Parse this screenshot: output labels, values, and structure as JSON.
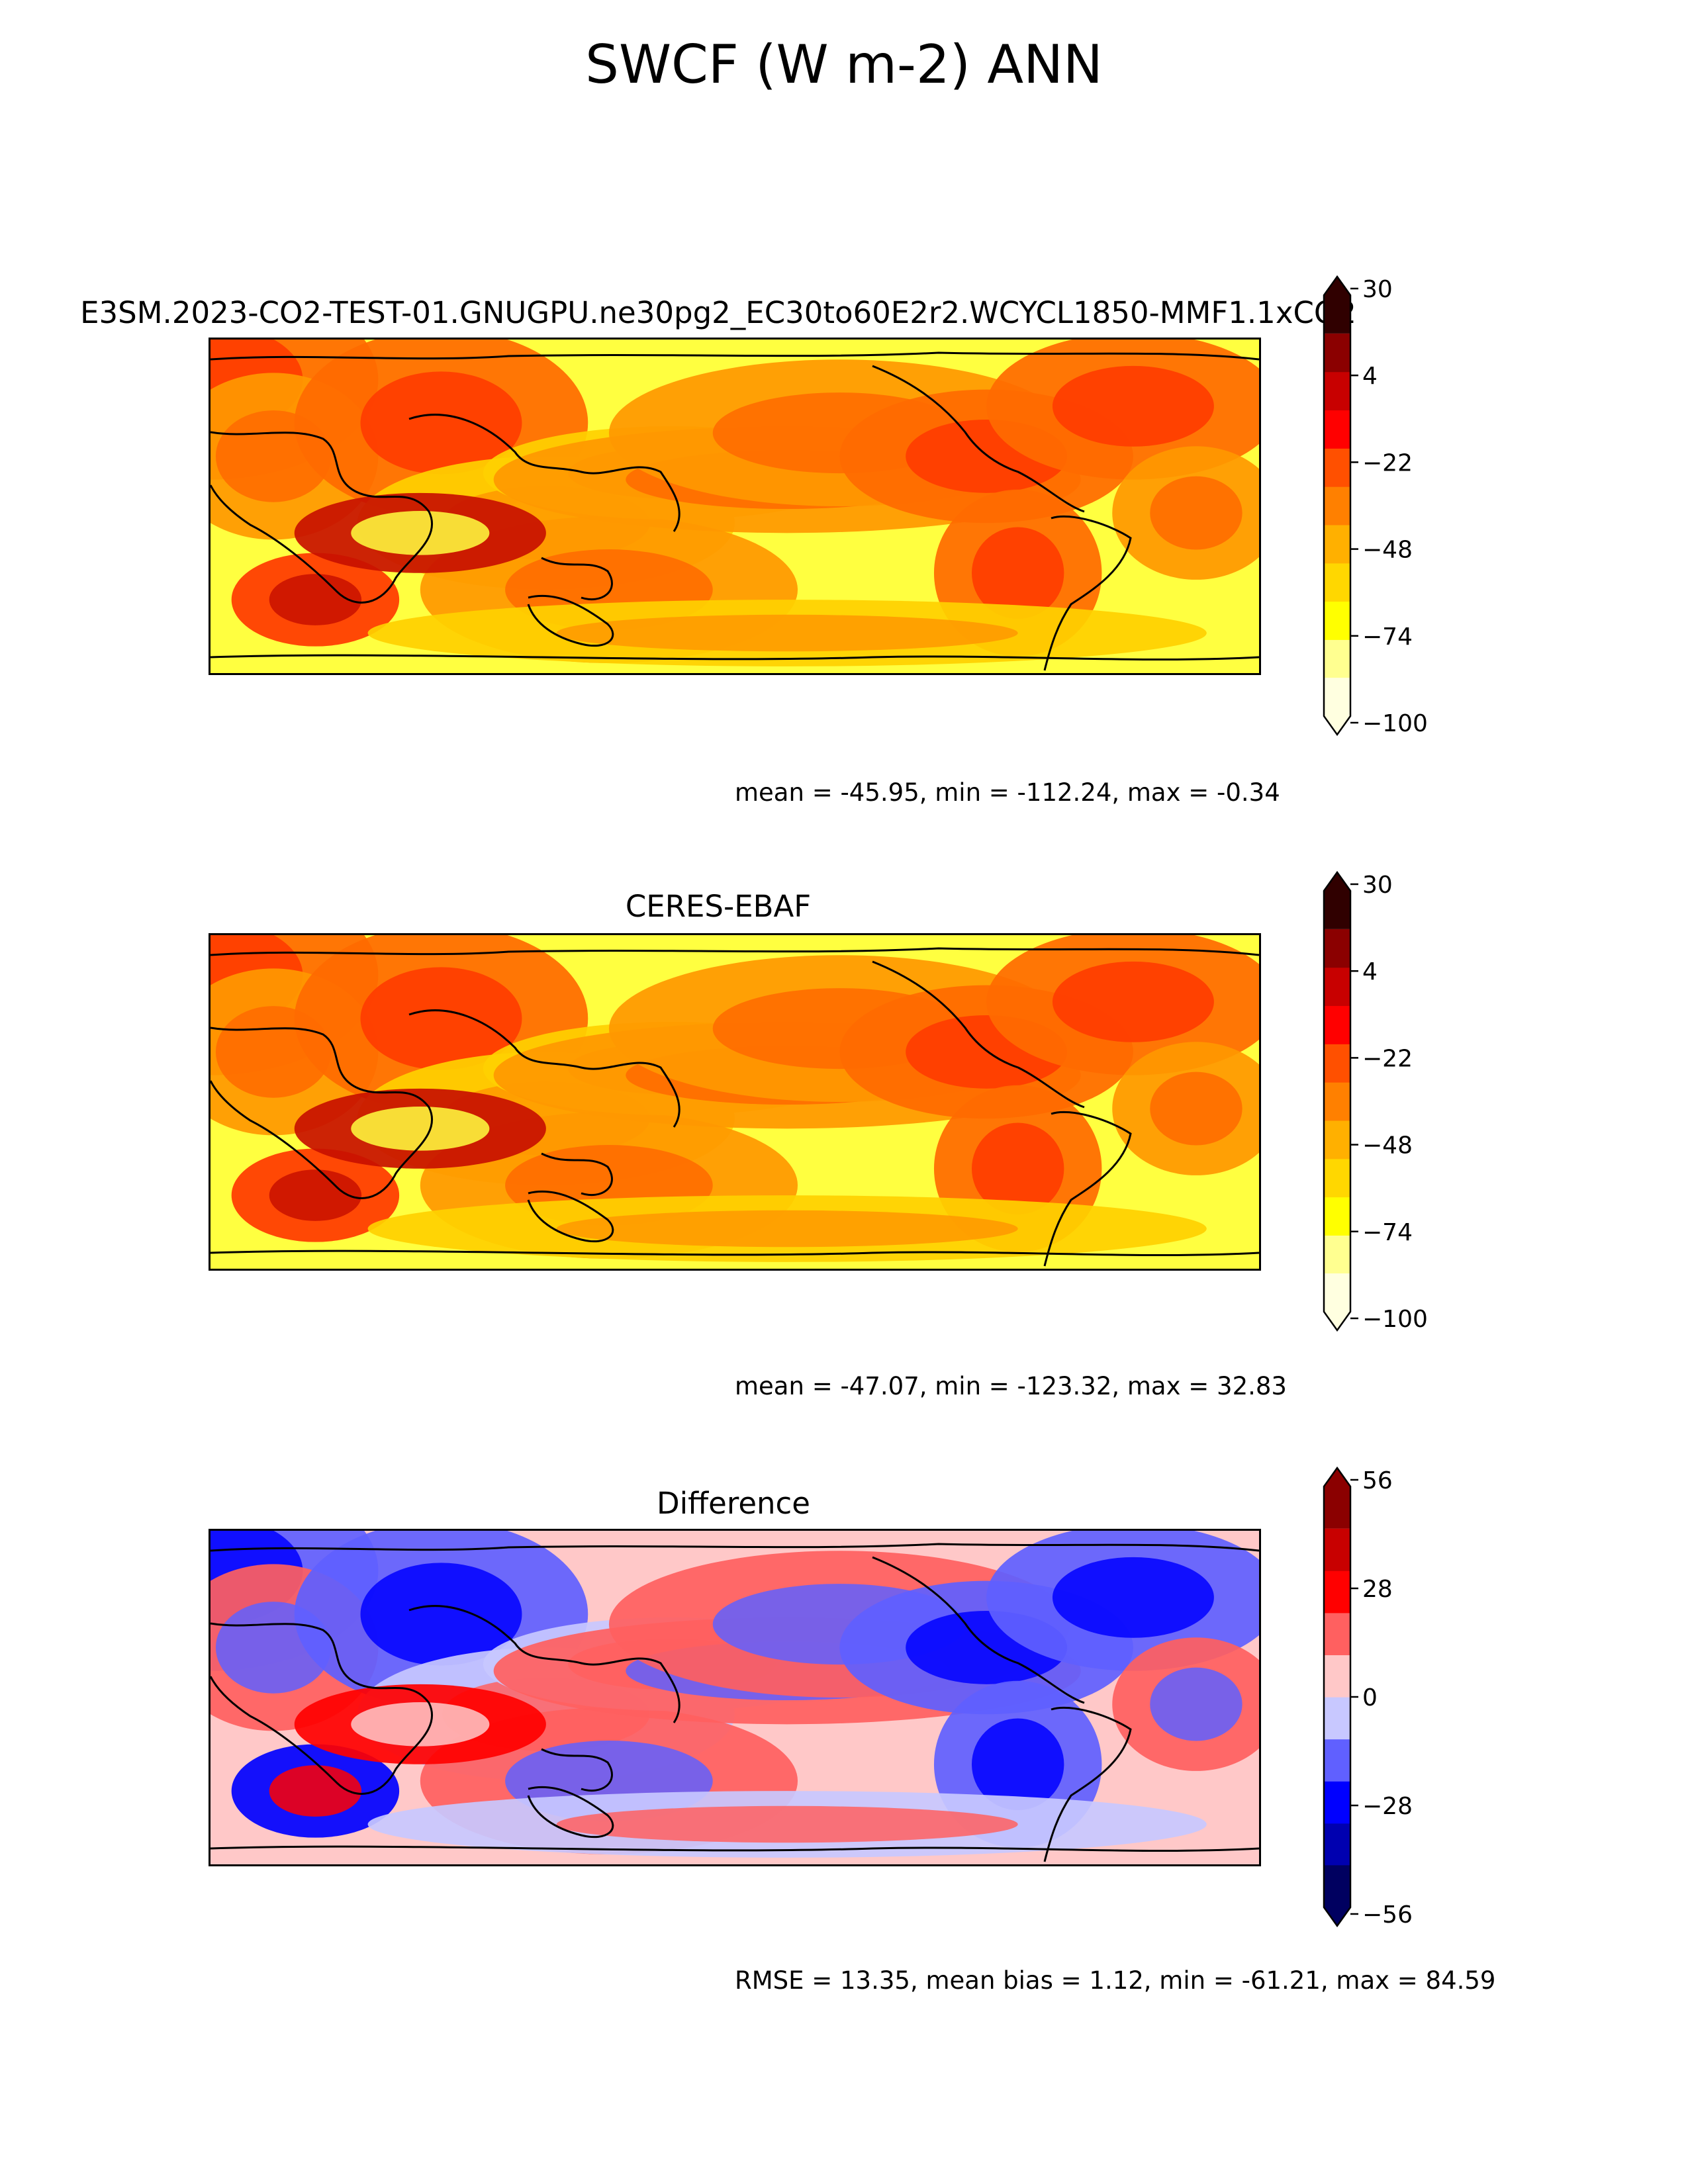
{
  "figure": {
    "title": "SWCF (W m-2) ANN"
  },
  "panels": [
    {
      "title": "E3SM.2023-CO2-TEST-01.GNUGPU.ne30pg2_EC30to60E2r2.WCYCL1850-MMF1.1xCO2",
      "stats": "mean = -45.95, min = -112.24, max = -0.34",
      "colorbar": {
        "colors": [
          "#ffffe0",
          "#ffff90",
          "#ffff00",
          "#ffd700",
          "#ffb000",
          "#ff8000",
          "#ff5000",
          "#ff0000",
          "#c80000",
          "#8b0000",
          "#300000"
        ],
        "ticks": [
          "30",
          "4",
          "−22",
          "−48",
          "−74",
          "−100"
        ]
      },
      "map_palette": [
        "#ffff40",
        "#ffd000",
        "#ff9800",
        "#ff6a00",
        "#ff3800",
        "#c81000"
      ]
    },
    {
      "title": "CERES-EBAF",
      "stats": "mean = -47.07, min = -123.32, max = 32.83",
      "colorbar": {
        "colors": [
          "#ffffe0",
          "#ffff90",
          "#ffff00",
          "#ffd700",
          "#ffb000",
          "#ff8000",
          "#ff5000",
          "#ff0000",
          "#c80000",
          "#8b0000",
          "#300000"
        ],
        "ticks": [
          "30",
          "4",
          "−22",
          "−48",
          "−74",
          "−100"
        ]
      },
      "map_palette": [
        "#ffff40",
        "#ffd000",
        "#ff9800",
        "#ff6a00",
        "#ff3800",
        "#c81000"
      ]
    },
    {
      "title": "Difference",
      "stats": "RMSE = 13.35, mean bias = 1.12, min = -61.21, max = 84.59",
      "colorbar": {
        "colors": [
          "#000060",
          "#0000b0",
          "#0000ff",
          "#6060ff",
          "#c8c8ff",
          "#ffc8c8",
          "#ff6060",
          "#ff0000",
          "#c80000",
          "#8b0000"
        ],
        "ticks": [
          "56",
          "28",
          "0",
          "−28",
          "−56"
        ]
      },
      "map_palette": [
        "#ffc8c8",
        "#c8c8ff",
        "#ff6060",
        "#6060ff",
        "#0000ff",
        "#ff0000"
      ]
    }
  ]
}
